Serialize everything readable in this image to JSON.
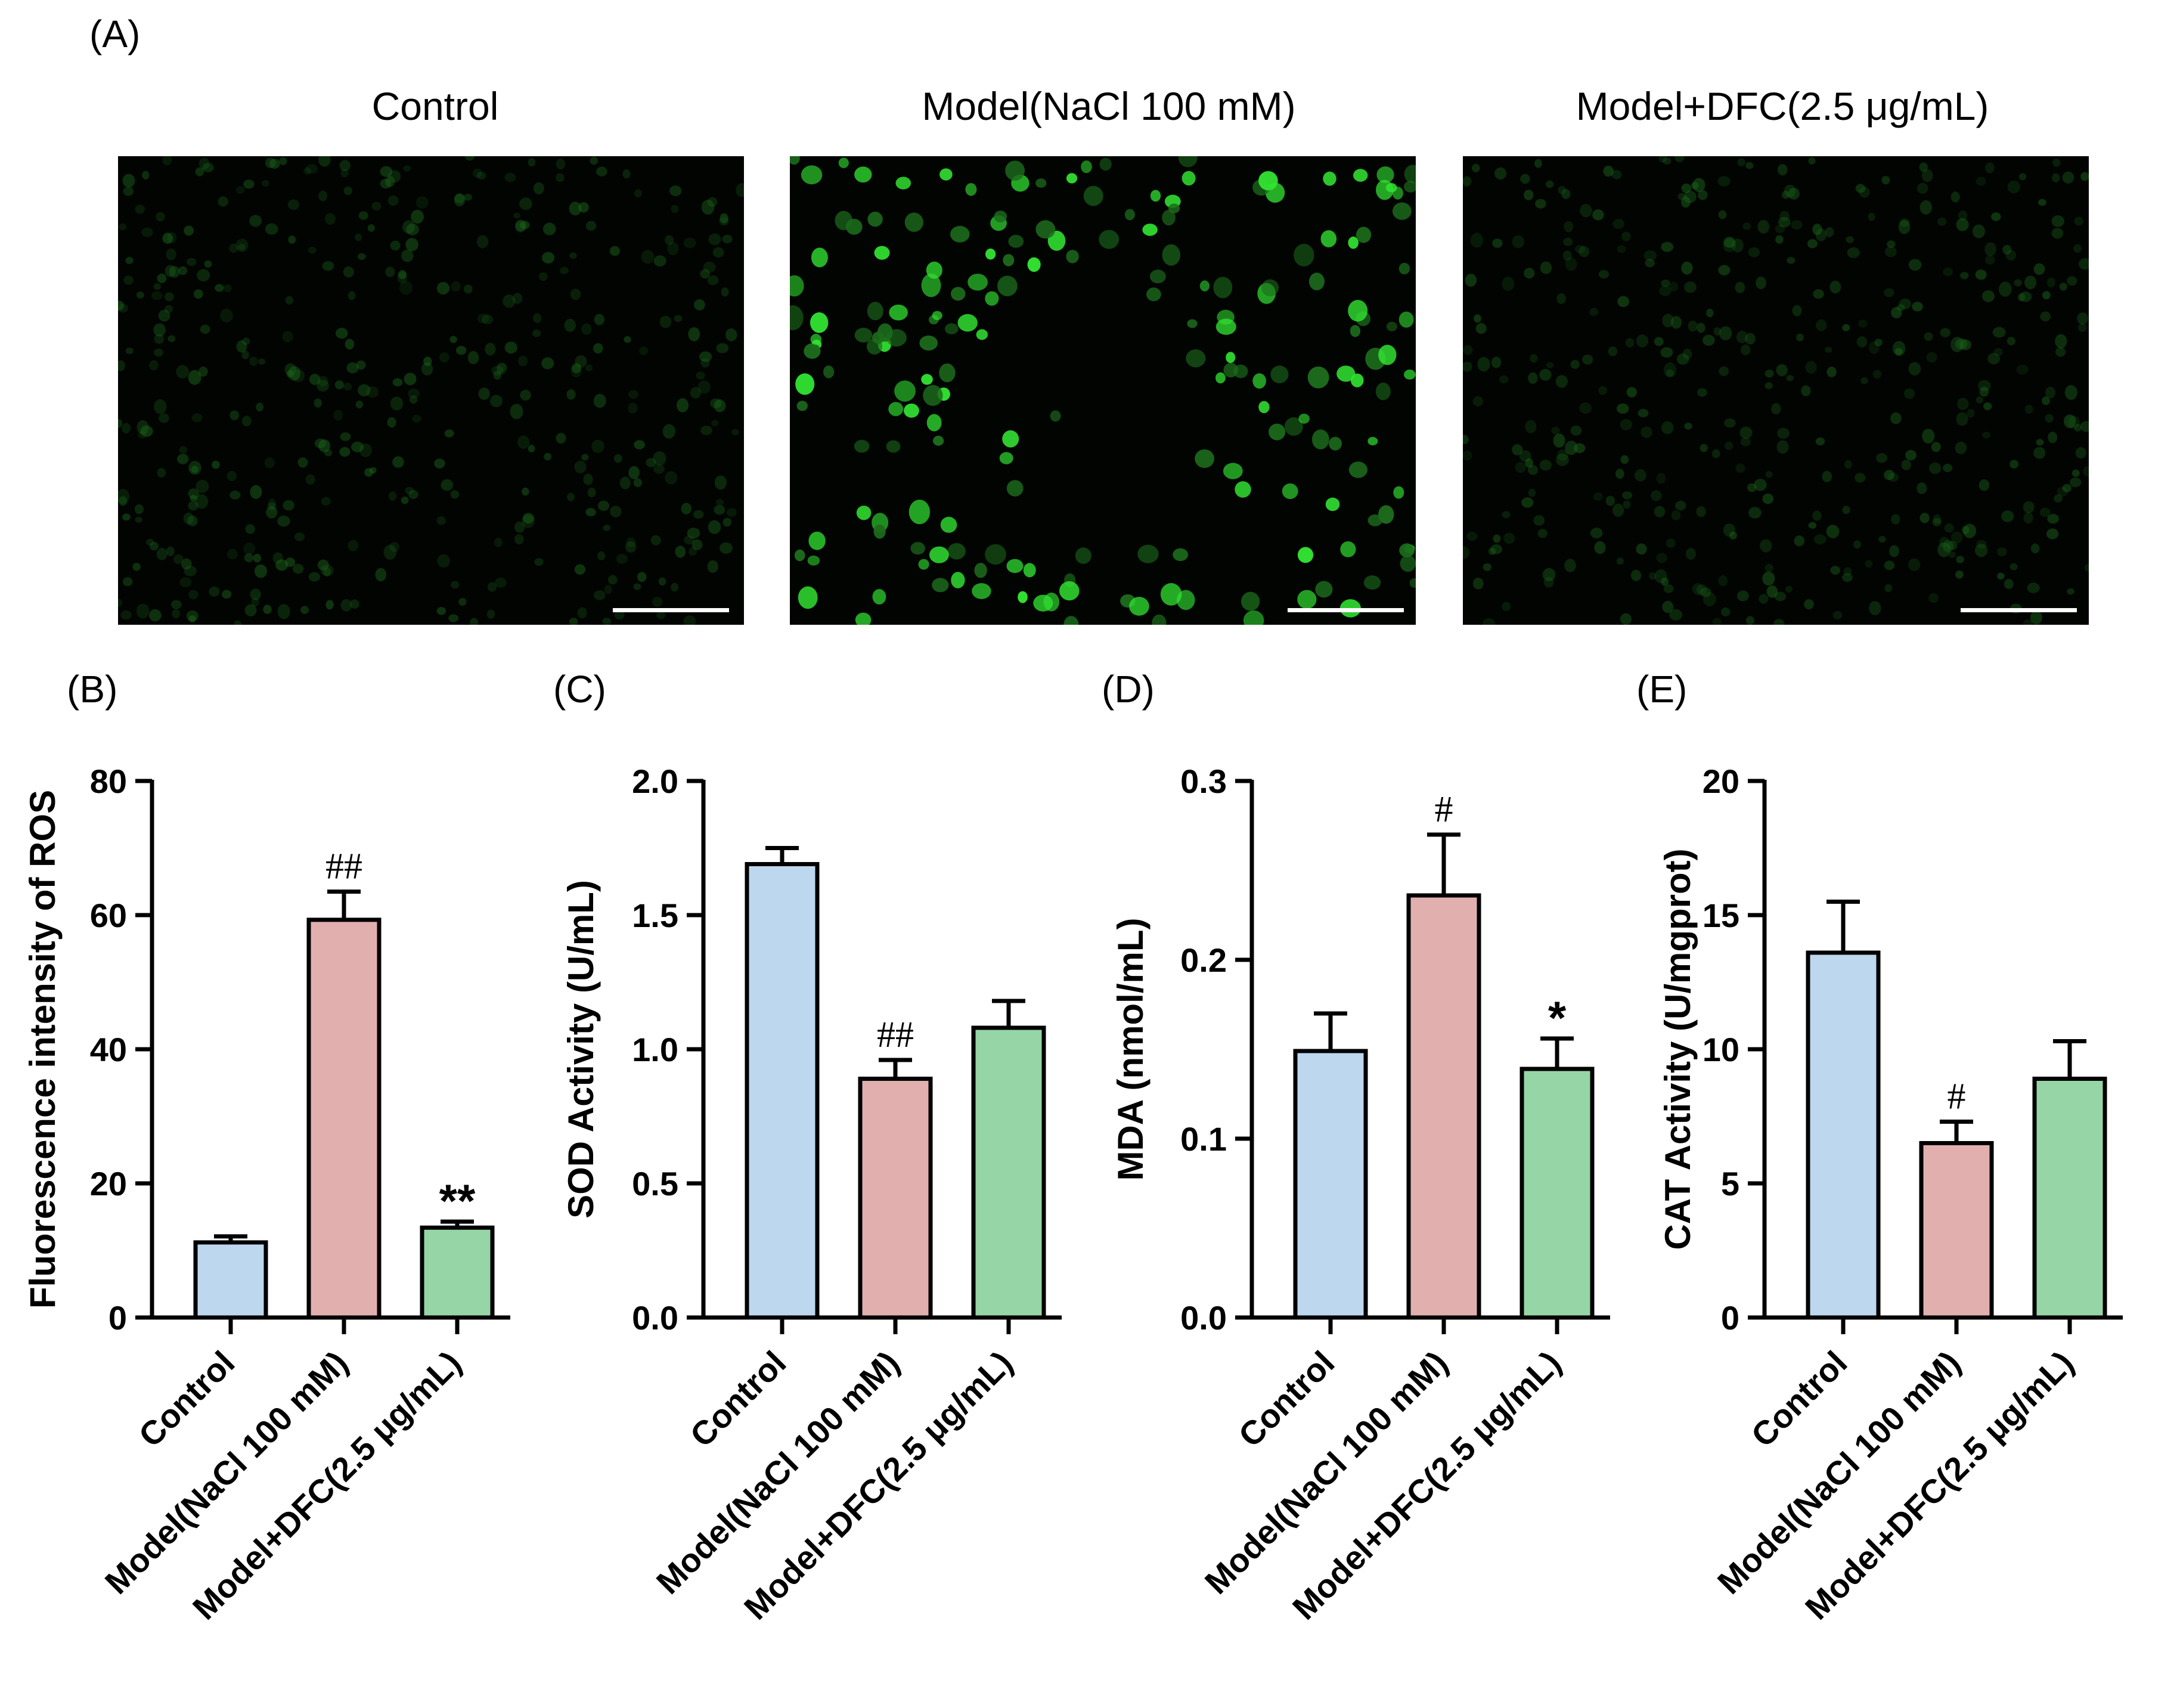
{
  "panel_a": {
    "letter": "(A)",
    "images": [
      {
        "title": "Control",
        "intensity": "low"
      },
      {
        "title": "Model(NaCl 100 mM)",
        "intensity": "high"
      },
      {
        "title": "Model+DFC(2.5 μg/mL)",
        "intensity": "low"
      }
    ]
  },
  "colors": {
    "control": "#bdd7ee",
    "model": "#e2afaf",
    "dfc": "#96d5a5",
    "fluor_dim": "#1c6a1c",
    "fluor_bright": "#32e432"
  },
  "chart_data": [
    {
      "panel": "(B)",
      "type": "bar",
      "categories": [
        "Control",
        "Model(NaCl 100 mM)",
        "Model+DFC(2.5 μg/mL)"
      ],
      "values": [
        11.2,
        59.3,
        13.4
      ],
      "errors": [
        0.9,
        4.2,
        0.9
      ],
      "annotations": [
        "",
        "##",
        "**"
      ],
      "ylabel": "Fluorescence intensity of ROS",
      "ylim": [
        0,
        80
      ],
      "yticks": [
        "0",
        "20",
        "40",
        "60",
        "80"
      ]
    },
    {
      "panel": "(C)",
      "type": "bar",
      "categories": [
        "Control",
        "Model(NaCl 100 mM)",
        "Model+DFC(2.5 μg/mL)"
      ],
      "values": [
        1.69,
        0.89,
        1.08
      ],
      "errors": [
        0.06,
        0.07,
        0.1
      ],
      "annotations": [
        "",
        "##",
        ""
      ],
      "ylabel": "SOD Activity (U/mL)",
      "ylim": [
        0,
        2.0
      ],
      "yticks": [
        "0.0",
        "0.5",
        "1.0",
        "1.5",
        "2.0"
      ]
    },
    {
      "panel": "(D)",
      "type": "bar",
      "categories": [
        "Control",
        "Model(NaCl 100 mM)",
        "Model+DFC(2.5 μg/mL)"
      ],
      "values": [
        0.149,
        0.236,
        0.139
      ],
      "errors": [
        0.021,
        0.034,
        0.017
      ],
      "annotations": [
        "",
        "#",
        "*"
      ],
      "ylabel": "MDA (nmol/mL)",
      "ylim": [
        0,
        0.3
      ],
      "yticks": [
        "0.0",
        "0.1",
        "0.2",
        "0.3"
      ]
    },
    {
      "panel": "(E)",
      "type": "bar",
      "categories": [
        "Control",
        "Model(NaCl 100 mM)",
        "Model+DFC(2.5 μg/mL)"
      ],
      "values": [
        13.6,
        6.5,
        8.9
      ],
      "errors": [
        1.9,
        0.8,
        1.4
      ],
      "annotations": [
        "",
        "#",
        ""
      ],
      "ylabel": "CAT Activity (U/mgprot)",
      "ylim": [
        0,
        20
      ],
      "yticks": [
        "0",
        "5",
        "10",
        "15",
        "20"
      ]
    }
  ]
}
